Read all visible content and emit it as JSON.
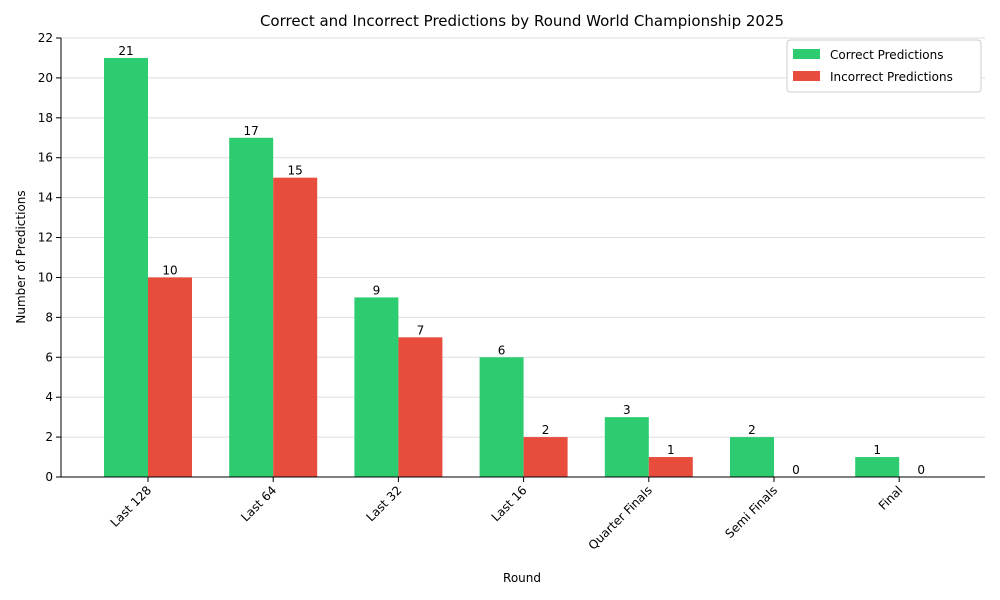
{
  "chart_data": {
    "type": "bar",
    "title": "Correct and Incorrect Predictions by Round World Championship 2025",
    "xlabel": "Round",
    "ylabel": "Number of Predictions",
    "categories": [
      "Last 128",
      "Last 64",
      "Last 32",
      "Last 16",
      "Quarter Finals",
      "Semi Finals",
      "Final"
    ],
    "series": [
      {
        "name": "Correct Predictions",
        "color": "#2ecc71",
        "values": [
          21,
          17,
          9,
          6,
          3,
          2,
          1
        ]
      },
      {
        "name": "Incorrect Predictions",
        "color": "#e74c3c",
        "values": [
          10,
          15,
          7,
          2,
          1,
          0,
          0
        ]
      }
    ],
    "ylim": [
      0,
      22
    ],
    "yticks": [
      0,
      2,
      4,
      6,
      8,
      10,
      12,
      14,
      16,
      18,
      20,
      22
    ],
    "grid": "y",
    "legend": "top-right",
    "xtick_rotation": "45deg"
  }
}
